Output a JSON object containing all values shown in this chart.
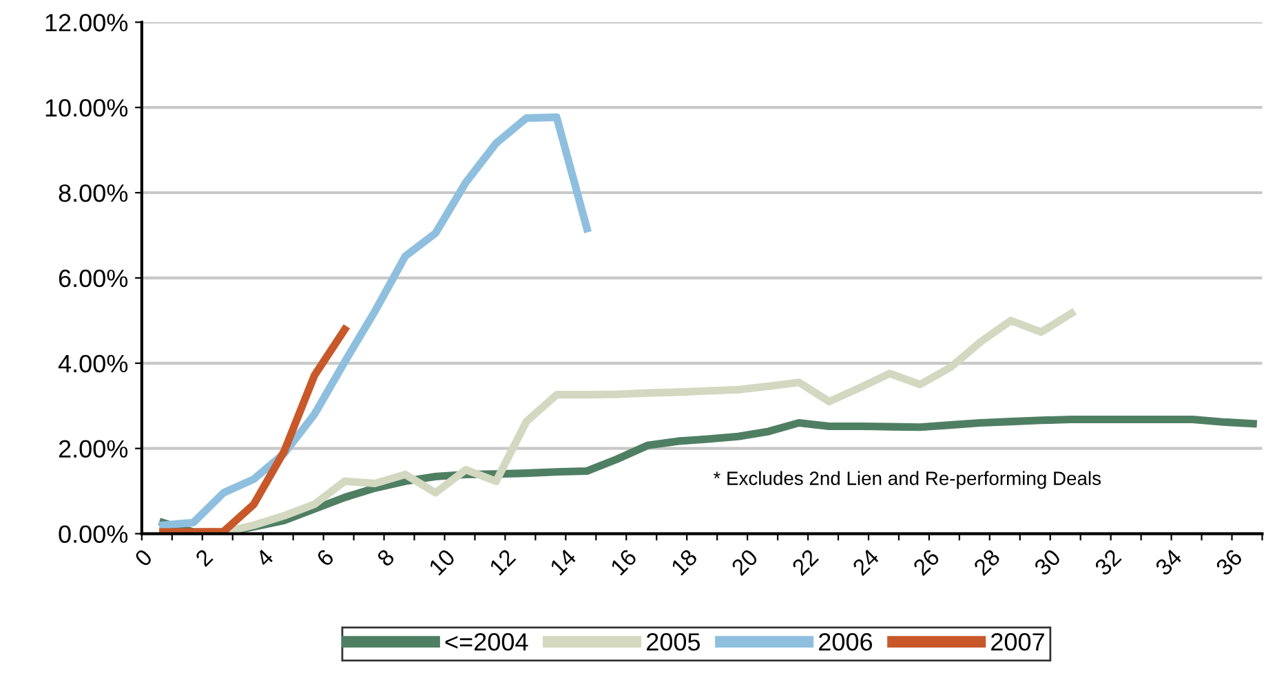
{
  "chart_data": {
    "type": "line",
    "xlim": [
      0,
      37
    ],
    "ylim": [
      0,
      12
    ],
    "xticks": [
      0,
      {
        "value": 1,
        "label": null
      },
      2,
      {
        "value": 3,
        "label": null
      },
      4,
      {
        "value": 5,
        "label": null
      },
      6,
      {
        "value": 7,
        "label": null
      },
      8,
      {
        "value": 9,
        "label": null
      },
      10,
      {
        "value": 11,
        "label": null
      },
      12,
      {
        "value": 13,
        "label": null
      },
      14,
      {
        "value": 15,
        "label": null
      },
      16,
      {
        "value": 17,
        "label": null
      },
      18,
      {
        "value": 19,
        "label": null
      },
      20,
      {
        "value": 21,
        "label": null
      },
      22,
      {
        "value": 23,
        "label": null
      },
      24,
      {
        "value": 25,
        "label": null
      },
      26,
      {
        "value": 27,
        "label": null
      },
      28,
      {
        "value": 29,
        "label": null
      },
      30,
      {
        "value": 31,
        "label": null
      },
      32,
      {
        "value": 33,
        "label": null
      },
      34,
      {
        "value": 35,
        "label": null
      },
      36,
      {
        "value": 37,
        "label": null
      }
    ],
    "yticks": [
      {
        "value": 0,
        "label": "0.00%"
      },
      {
        "value": 2,
        "label": "2.00%"
      },
      {
        "value": 4,
        "label": "4.00%"
      },
      {
        "value": 6,
        "label": "6.00%"
      },
      {
        "value": 8,
        "label": "8.00%"
      },
      {
        "value": 10,
        "label": "10.00%"
      },
      {
        "value": 12,
        "label": "12.00%"
      }
    ],
    "grid": "y",
    "legend": "bottom",
    "marker": "none",
    "line_style": "solid",
    "annotations": [
      "* Excludes 2nd Lien and Re-performing Deals"
    ],
    "series": [
      {
        "name": "<=2004",
        "color": "#4f7f63",
        "x": [
          0.7,
          1.7,
          2.7,
          3.7,
          4.7,
          5.7,
          6.7,
          7.7,
          8.7,
          9.7,
          10.7,
          11.7,
          12.7,
          13.7,
          14.7,
          15.7,
          16.7,
          17.7,
          18.7,
          19.7,
          20.7,
          21.7,
          22.7,
          23.7,
          24.7,
          25.7,
          26.7,
          27.7,
          28.7,
          29.7,
          30.7,
          31.7,
          32.7,
          33.7,
          34.7,
          35.7,
          36.7
        ],
        "values": [
          0.26,
          0.04,
          0.03,
          0.16,
          0.31,
          0.58,
          0.85,
          1.07,
          1.23,
          1.34,
          1.39,
          1.4,
          1.42,
          1.45,
          1.47,
          1.75,
          2.07,
          2.17,
          2.22,
          2.28,
          2.4,
          2.6,
          2.52,
          2.52,
          2.51,
          2.5,
          2.55,
          2.6,
          2.63,
          2.66,
          2.68,
          2.68,
          2.68,
          2.68,
          2.68,
          2.62,
          2.58
        ]
      },
      {
        "name": "2005",
        "color": "#d3d8c0",
        "x": [
          2.7,
          3.7,
          4.7,
          5.7,
          6.7,
          7.7,
          8.7,
          9.7,
          10.7,
          11.7,
          12.7,
          13.7,
          14.7,
          15.7,
          16.7,
          17.7,
          18.7,
          19.7,
          20.7,
          21.7,
          22.7,
          23.7,
          24.7,
          25.7,
          26.7,
          27.7,
          28.7,
          29.7,
          30.7
        ],
        "values": [
          0.03,
          0.2,
          0.42,
          0.69,
          1.23,
          1.18,
          1.39,
          0.96,
          1.5,
          1.23,
          2.63,
          3.26,
          3.26,
          3.27,
          3.3,
          3.32,
          3.35,
          3.38,
          3.46,
          3.55,
          3.1,
          3.42,
          3.76,
          3.5,
          3.9,
          4.5,
          5.0,
          4.73,
          5.17
        ]
      },
      {
        "name": "2006",
        "color": "#8fbfdf",
        "x": [
          0.7,
          1.7,
          2.7,
          3.7,
          4.7,
          5.7,
          6.7,
          7.7,
          8.7,
          9.7,
          10.7,
          11.7,
          12.7,
          13.7,
          14.7
        ],
        "values": [
          0.2,
          0.26,
          0.96,
          1.28,
          1.88,
          2.8,
          4.03,
          5.22,
          6.51,
          7.05,
          8.24,
          9.16,
          9.75,
          9.77,
          7.16
        ]
      },
      {
        "name": "2007",
        "color": "#c8582a",
        "x": [
          0.7,
          1.7,
          2.7,
          3.7,
          4.7,
          5.7,
          6.7
        ],
        "values": [
          0.04,
          0.04,
          0.05,
          0.69,
          1.93,
          3.71,
          4.79
        ]
      }
    ]
  }
}
